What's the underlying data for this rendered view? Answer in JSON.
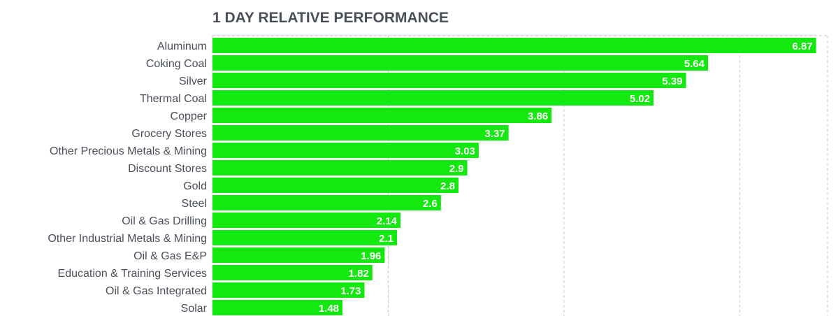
{
  "chart_data": {
    "type": "bar",
    "orientation": "horizontal",
    "title": "1 DAY RELATIVE PERFORMANCE",
    "categories": [
      "Aluminum",
      "Coking Coal",
      "Silver",
      "Thermal Coal",
      "Copper",
      "Grocery Stores",
      "Other Precious Metals & Mining",
      "Discount Stores",
      "Gold",
      "Steel",
      "Oil & Gas Drilling",
      "Other Industrial Metals & Mining",
      "Oil & Gas E&P",
      "Education & Training Services",
      "Oil & Gas Integrated",
      "Solar"
    ],
    "values": [
      6.87,
      5.64,
      5.39,
      5.02,
      3.86,
      3.37,
      3.03,
      2.9,
      2.8,
      2.6,
      2.14,
      2.1,
      1.96,
      1.82,
      1.73,
      1.48
    ],
    "value_labels": [
      "6.87",
      "5.64",
      "5.39",
      "5.02",
      "3.86",
      "3.37",
      "3.03",
      "2.9",
      "2.8",
      "2.6",
      "2.14",
      "2.1",
      "1.96",
      "1.82",
      "1.73",
      "1.48"
    ],
    "xlim": [
      0,
      7.0
    ],
    "gridlines": [
      0,
      2,
      4,
      6,
      7
    ],
    "grid": true,
    "grid_style": "dashed",
    "legend": "none",
    "bar_color": "#13e80f",
    "label_color": "#ffffff",
    "text_color": "#4a4f5a"
  }
}
